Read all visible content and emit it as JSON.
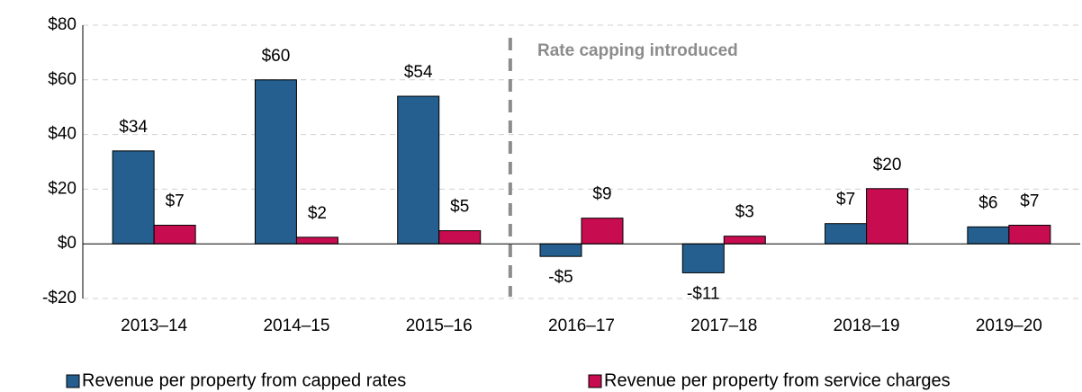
{
  "chart_data": {
    "type": "bar",
    "categories": [
      "2013–14",
      "2014–15",
      "2015–16",
      "2016–17",
      "2017–18",
      "2018–19",
      "2019–20"
    ],
    "series": [
      {
        "name": "Revenue per property from capped rates",
        "color": "#245f8f",
        "values": [
          34,
          60,
          54,
          -4.6,
          -10.6,
          7.4,
          6.2
        ],
        "value_labels": [
          "$34",
          "$60",
          "$54",
          "-$5",
          "-$11",
          "$7",
          "$6"
        ]
      },
      {
        "name": "Revenue per property from service charges",
        "color": "#c80c50",
        "values": [
          6.8,
          2.4,
          4.8,
          9.4,
          2.8,
          20.2,
          6.8
        ],
        "value_labels": [
          "$7",
          "$2",
          "$5",
          "$9",
          "$3",
          "$20",
          "$7"
        ]
      }
    ],
    "annotation": "Rate capping introduced",
    "ylim": [
      -20,
      80
    ],
    "yticks": [
      {
        "value": -20,
        "label": "-$20"
      },
      {
        "value": 0,
        "label": "$0"
      },
      {
        "value": 20,
        "label": "$20"
      },
      {
        "value": 40,
        "label": "$40"
      },
      {
        "value": 60,
        "label": "$60"
      },
      {
        "value": 80,
        "label": "$80"
      }
    ],
    "grid": true,
    "legend": "bottom"
  }
}
